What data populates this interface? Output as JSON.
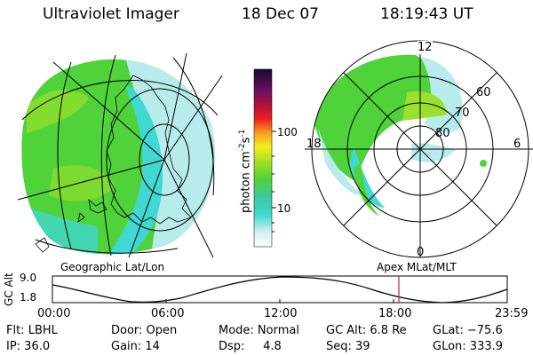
{
  "header": {
    "instrument": "Ultraviolet Imager",
    "date": "18 Dec 07",
    "time": "18:19:43 UT"
  },
  "panels": {
    "left_label": "Geographic Lat/Lon",
    "right_label": "Apex MLat/MLT",
    "right_mlt_labels": [
      "12",
      "18",
      "6",
      "0"
    ],
    "right_mlat_labels": [
      "60",
      "70",
      "80"
    ]
  },
  "colorbar": {
    "unit_label": "photon cm",
    "unit_exp1": "-2",
    "unit_s": "s",
    "unit_exp2": "-1",
    "tick_labels": [
      "100",
      "10"
    ]
  },
  "altitude_plot": {
    "ylabel": "GC Alt",
    "ytick_labels": [
      "9.0",
      "1.8"
    ],
    "xtick_labels": [
      "00:00",
      "06:00",
      "12:00",
      "18:00",
      "23:59"
    ],
    "marker_time": "18:19:43",
    "marker_color": "#cc2222"
  },
  "status": {
    "flt": "Flt: LBHL",
    "ip": "IP: 36.0",
    "door": "Door: Open",
    "gain": "Gain: 14",
    "mode": "Mode: Normal",
    "dsp": "Dsp:     4.8",
    "gc_alt": "GC Alt: 6.8 Re",
    "seq": "Seq: 39",
    "glat": "GLat: −75.6",
    "glon": "GLon: 333.9"
  },
  "colors": {
    "aurora_green": "#4fd23a",
    "aurora_yellowgreen": "#9be02a",
    "aurora_cyan": "#40d8d0",
    "aurora_lightcyan": "#b8ecec"
  }
}
